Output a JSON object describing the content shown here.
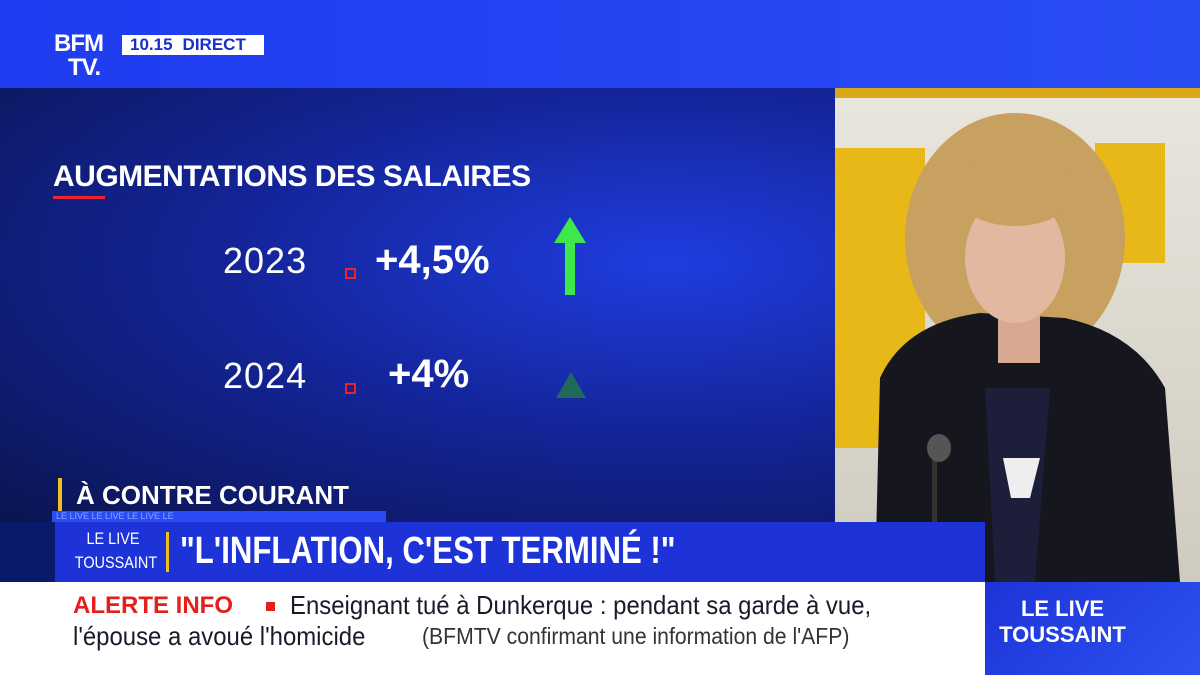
{
  "header": {
    "logo": [
      "BFM",
      "TV."
    ],
    "time": "10.15",
    "live": "DIRECT"
  },
  "graphic": {
    "title": "AUGMENTATIONS DES SALAIRES",
    "rows": [
      {
        "year": "2023",
        "value": "+4,5%"
      },
      {
        "year": "2024",
        "value": "+4%"
      }
    ]
  },
  "banner": {
    "section": "À CONTRE COURANT",
    "strip": "LE LIVE LE LIVE LE LIVE LE",
    "show": [
      "LE LIVE",
      "TOUSSAINT"
    ],
    "headline": "\"L'INFLATION, C'EST TERMINÉ !\""
  },
  "ticker": {
    "label": "ALERTE INFO",
    "text": "Enseignant tué à Dunkerque : pendant sa garde à vue,",
    "text2": "l'épouse a avoué l'homicide",
    "source": "(BFMTV confirmant une information de l'AFP)"
  },
  "corner": [
    "LE LIVE",
    "TOUSSAINT"
  ]
}
